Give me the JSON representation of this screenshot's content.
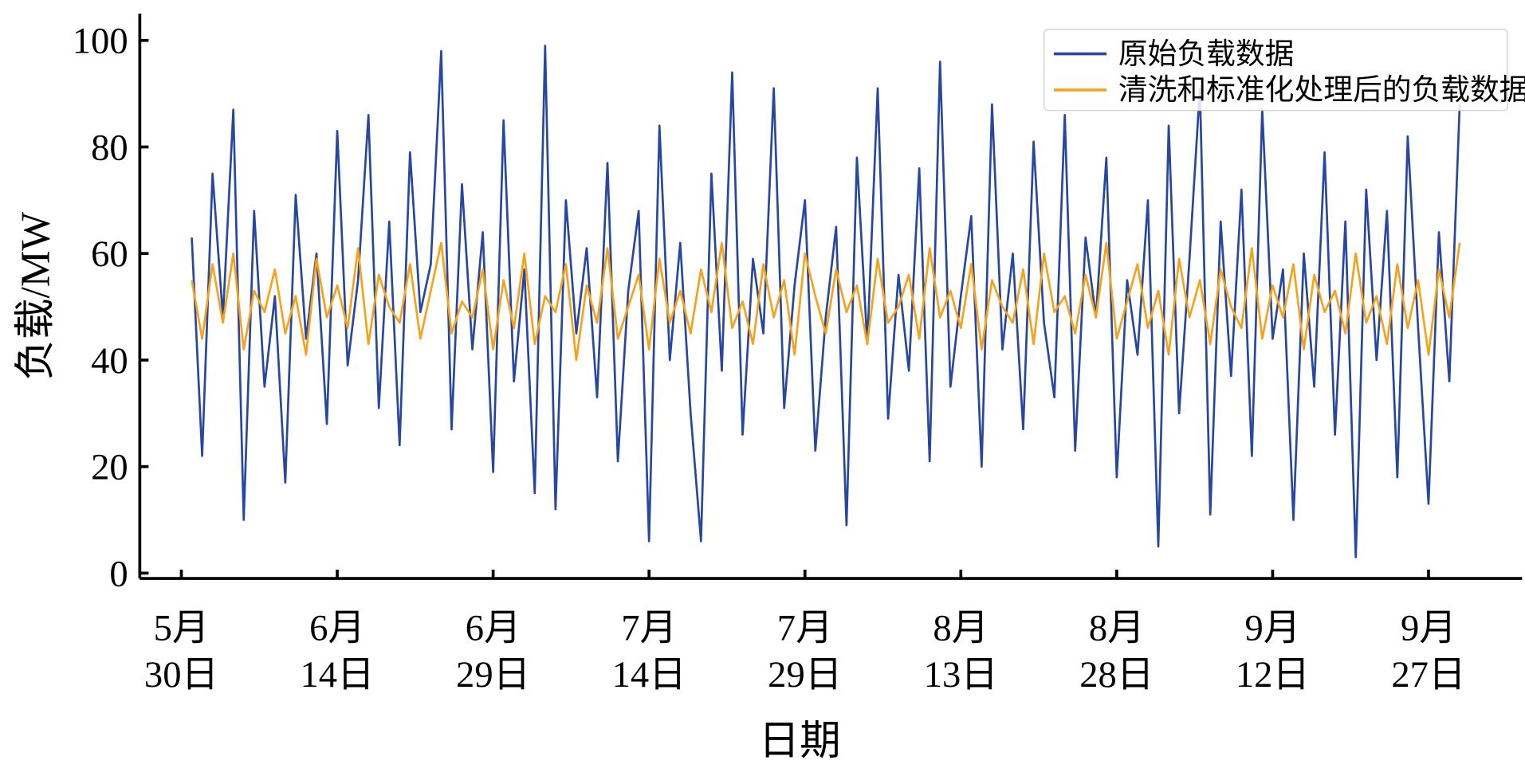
{
  "chart_data": {
    "type": "line",
    "x_label": "日期",
    "y_label": "负载/MW",
    "x": [
      "05-31",
      "06-01",
      "06-02",
      "06-03",
      "06-04",
      "06-05",
      "06-06",
      "06-07",
      "06-08",
      "06-09",
      "06-10",
      "06-11",
      "06-12",
      "06-13",
      "06-14",
      "06-15",
      "06-16",
      "06-17",
      "06-18",
      "06-19",
      "06-20",
      "06-21",
      "06-22",
      "06-23",
      "06-24",
      "06-25",
      "06-26",
      "06-27",
      "06-28",
      "06-29",
      "06-30",
      "07-01",
      "07-02",
      "07-03",
      "07-04",
      "07-05",
      "07-06",
      "07-07",
      "07-08",
      "07-09",
      "07-10",
      "07-11",
      "07-12",
      "07-13",
      "07-14",
      "07-15",
      "07-16",
      "07-17",
      "07-18",
      "07-19",
      "07-20",
      "07-21",
      "07-22",
      "07-23",
      "07-24",
      "07-25",
      "07-26",
      "07-27",
      "07-28",
      "07-29",
      "07-30",
      "07-31",
      "08-01",
      "08-02",
      "08-03",
      "08-04",
      "08-05",
      "08-06",
      "08-07",
      "08-08",
      "08-09",
      "08-10",
      "08-11",
      "08-12",
      "08-13",
      "08-14",
      "08-15",
      "08-16",
      "08-17",
      "08-18",
      "08-19",
      "08-20",
      "08-21",
      "08-22",
      "08-23",
      "08-24",
      "08-25",
      "08-26",
      "08-27",
      "08-28",
      "08-29",
      "08-30",
      "08-31",
      "09-01",
      "09-02",
      "09-03",
      "09-04",
      "09-05",
      "09-06",
      "09-07",
      "09-08",
      "09-09",
      "09-10",
      "09-11",
      "09-12",
      "09-13",
      "09-14",
      "09-15",
      "09-16",
      "09-17",
      "09-18",
      "09-19",
      "09-20",
      "09-21",
      "09-22",
      "09-23",
      "09-24",
      "09-25",
      "09-26",
      "09-27",
      "09-28",
      "09-29",
      "09-30"
    ],
    "series": [
      {
        "name": "原始负载数据",
        "color": "#2747a0",
        "values": [
          63,
          22,
          75,
          48,
          87,
          10,
          68,
          35,
          52,
          17,
          71,
          44,
          60,
          28,
          83,
          39,
          55,
          86,
          31,
          66,
          24,
          79,
          49,
          58,
          98,
          27,
          73,
          42,
          64,
          19,
          85,
          36,
          57,
          15,
          99,
          12,
          70,
          45,
          61,
          33,
          77,
          21,
          53,
          68,
          6,
          84,
          40,
          62,
          30,
          6,
          75,
          38,
          94,
          26,
          59,
          45,
          91,
          31,
          54,
          70,
          23,
          48,
          65,
          9,
          78,
          43,
          91,
          29,
          56,
          38,
          76,
          21,
          96,
          35,
          52,
          67,
          20,
          88,
          42,
          60,
          27,
          81,
          47,
          33,
          86,
          23,
          63,
          48,
          78,
          18,
          55,
          41,
          70,
          5,
          84,
          30,
          59,
          91,
          11,
          66,
          37,
          72,
          22,
          87,
          44,
          57,
          10,
          60,
          35,
          79,
          26,
          66,
          3,
          72,
          40,
          68,
          18,
          82,
          46,
          13,
          64,
          36,
          88
        ]
      },
      {
        "name": "清洗和标准化处理后的负载数据",
        "color": "#f5a31a",
        "values": [
          55,
          44,
          58,
          47,
          60,
          42,
          53,
          49,
          57,
          45,
          52,
          41,
          59,
          48,
          54,
          46,
          61,
          43,
          56,
          50,
          47,
          58,
          44,
          53,
          62,
          45,
          51,
          48,
          57,
          42,
          55,
          46,
          60,
          43,
          52,
          49,
          58,
          40,
          54,
          47,
          61,
          44,
          50,
          56,
          42,
          59,
          47,
          53,
          45,
          57,
          49,
          62,
          46,
          51,
          43,
          58,
          48,
          55,
          41,
          60,
          52,
          45,
          57,
          49,
          54,
          43,
          59,
          47,
          50,
          56,
          44,
          61,
          48,
          53,
          46,
          58,
          42,
          55,
          50,
          47,
          57,
          43,
          60,
          49,
          52,
          45,
          56,
          48,
          62,
          44,
          51,
          58,
          46,
          53,
          41,
          59,
          48,
          55,
          43,
          57,
          50,
          46,
          61,
          44,
          54,
          48,
          58,
          42,
          56,
          49,
          53,
          45,
          60,
          47,
          52,
          43,
          58,
          46,
          55,
          41,
          57,
          48,
          62
        ]
      }
    ],
    "xlim": [
      "05-26",
      "10-06"
    ],
    "xticks": [
      {
        "value": "05-30",
        "label": "5月\n30日"
      },
      {
        "value": "06-14",
        "label": "6月\n14日"
      },
      {
        "value": "06-29",
        "label": "6月\n29日"
      },
      {
        "value": "07-14",
        "label": "7月\n14日"
      },
      {
        "value": "07-29",
        "label": "7月\n29日"
      },
      {
        "value": "08-13",
        "label": "8月\n13日"
      },
      {
        "value": "08-28",
        "label": "8月\n28日"
      },
      {
        "value": "09-12",
        "label": "9月\n12日"
      },
      {
        "value": "09-27",
        "label": "9月\n27日"
      }
    ],
    "ylim": [
      -1,
      105
    ],
    "yticks": [
      0,
      20,
      40,
      60,
      80,
      100
    ],
    "grid": false,
    "legend": "upper right"
  }
}
